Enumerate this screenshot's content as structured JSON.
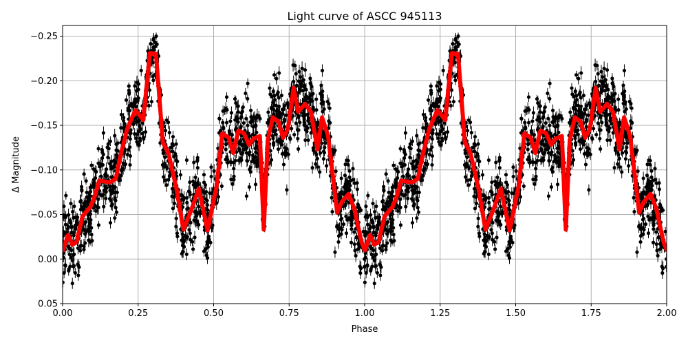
{
  "chart_data": {
    "type": "scatter",
    "title": "Light curve of ASCC 945113",
    "xlabel": "Phase",
    "ylabel": "Δ Magnitude",
    "xlim": [
      0,
      2
    ],
    "ylim": [
      0.05,
      -0.262
    ],
    "y_inverted": true,
    "grid": true,
    "x_ticks": [
      "0.00",
      "0.25",
      "0.50",
      "0.75",
      "1.00",
      "1.25",
      "1.50",
      "1.75",
      "2.00"
    ],
    "x_tick_values": [
      0,
      0.25,
      0.5,
      0.75,
      1.0,
      1.25,
      1.5,
      1.75,
      2.0
    ],
    "y_ticks": [
      "−0.25",
      "−0.20",
      "−0.15",
      "−0.10",
      "−0.05",
      "0.00",
      "0.05"
    ],
    "y_tick_values": [
      -0.25,
      -0.2,
      -0.15,
      -0.1,
      -0.05,
      0.0,
      0.05
    ],
    "colors": {
      "points": "#000000",
      "model": "#ff0000",
      "grid": "#b0b0b0"
    },
    "series": [
      {
        "kind": "errorbar-scatter",
        "color": "#000000",
        "description_of_marks": "folded photometric points with error bars, repeated over two phase cycles"
      },
      {
        "kind": "line",
        "color": "#ff0000",
        "periodic": true,
        "phase": [
          0.0015,
          0.018,
          0.032,
          0.046,
          0.066,
          0.093,
          0.108,
          0.121,
          0.138,
          0.157,
          0.176,
          0.191,
          0.214,
          0.241,
          0.267,
          0.289,
          0.309,
          0.332,
          0.351,
          0.377,
          0.4,
          0.427,
          0.451,
          0.48,
          0.51,
          0.529,
          0.55,
          0.565,
          0.582,
          0.601,
          0.617,
          0.632,
          0.653,
          0.666,
          0.679,
          0.696,
          0.715,
          0.73,
          0.746,
          0.765,
          0.78,
          0.803,
          0.822,
          0.844,
          0.859,
          0.879,
          0.909,
          0.924,
          0.947,
          0.966,
          0.989,
          1.0
        ],
        "magnitude": [
          -0.01,
          -0.027,
          -0.016,
          -0.019,
          -0.048,
          -0.059,
          -0.072,
          -0.088,
          -0.087,
          -0.086,
          -0.09,
          -0.115,
          -0.146,
          -0.167,
          -0.156,
          -0.231,
          -0.23,
          -0.131,
          -0.118,
          -0.079,
          -0.033,
          -0.056,
          -0.079,
          -0.032,
          -0.082,
          -0.141,
          -0.136,
          -0.119,
          -0.144,
          -0.141,
          -0.128,
          -0.135,
          -0.138,
          -0.033,
          -0.133,
          -0.159,
          -0.154,
          -0.136,
          -0.146,
          -0.192,
          -0.165,
          -0.174,
          -0.165,
          -0.123,
          -0.159,
          -0.138,
          -0.052,
          -0.064,
          -0.073,
          -0.056,
          -0.02,
          -0.01
        ]
      }
    ]
  }
}
